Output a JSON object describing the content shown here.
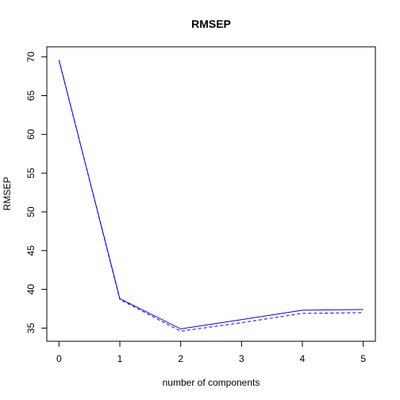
{
  "chart_data": {
    "type": "line",
    "title": "RMSEP",
    "xlabel": "number of components",
    "ylabel": "RMSEP",
    "x": [
      0,
      1,
      2,
      3,
      4,
      5
    ],
    "x_ticks": [
      "0",
      "1",
      "2",
      "3",
      "4",
      "5"
    ],
    "y_ticks": [
      "35",
      "40",
      "45",
      "50",
      "55",
      "60",
      "65",
      "70"
    ],
    "xlim": [
      -0.2,
      5.2
    ],
    "ylim": [
      33.3,
      71.3
    ],
    "series": [
      {
        "values": [
          69.6,
          38.8,
          34.9,
          36.1,
          37.3,
          37.4
        ],
        "color": "#0000ff",
        "style": "solid"
      },
      {
        "values": [
          69.6,
          38.7,
          34.6,
          35.7,
          36.9,
          37.0
        ],
        "color": "#0000ff",
        "style": "dashed"
      }
    ],
    "grid": false,
    "legend": "none"
  }
}
